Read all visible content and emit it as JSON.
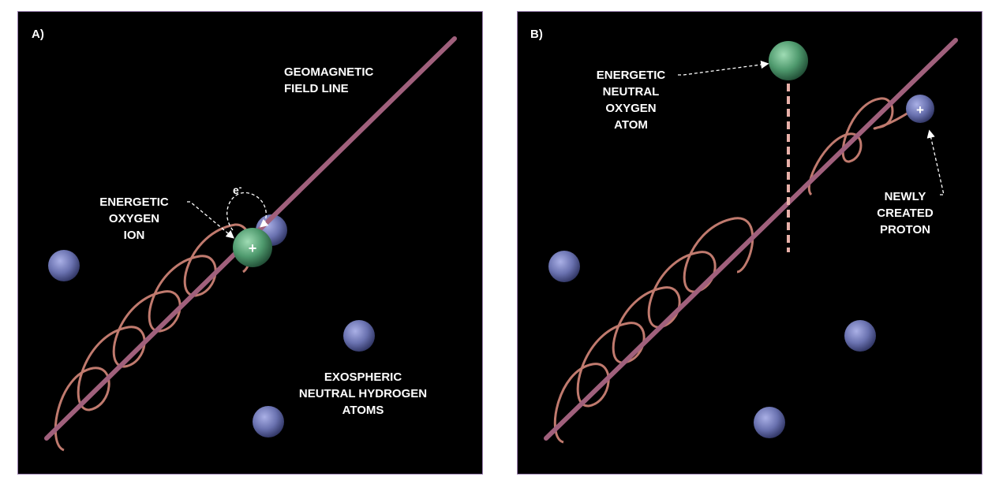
{
  "panels": [
    {
      "letter": "A)",
      "labels": {
        "field_line": [
          "GEOMAGNETIC",
          "FIELD LINE"
        ],
        "ion": [
          "ENERGETIC",
          "OXYGEN",
          "ION"
        ],
        "hydrogen": [
          "EXOSPHERIC",
          "NEUTRAL HYDROGEN",
          "ATOMS"
        ],
        "electron": "e",
        "electron_sup": "-"
      },
      "ion_sign": "+"
    },
    {
      "letter": "B)",
      "labels": {
        "neutral": [
          "ENERGETIC",
          "NEUTRAL",
          "OXYGEN",
          "ATOM"
        ],
        "proton": [
          "NEWLY",
          "CREATED",
          "PROTON"
        ]
      },
      "proton_sign": "+"
    }
  ],
  "colors": {
    "background": "#000000",
    "field_line": "#a0607c",
    "helix": "#c07a6e",
    "oxygen": "#4f9a6e",
    "hydrogen": "#6a72b0",
    "frame": "#9a7fb0"
  }
}
